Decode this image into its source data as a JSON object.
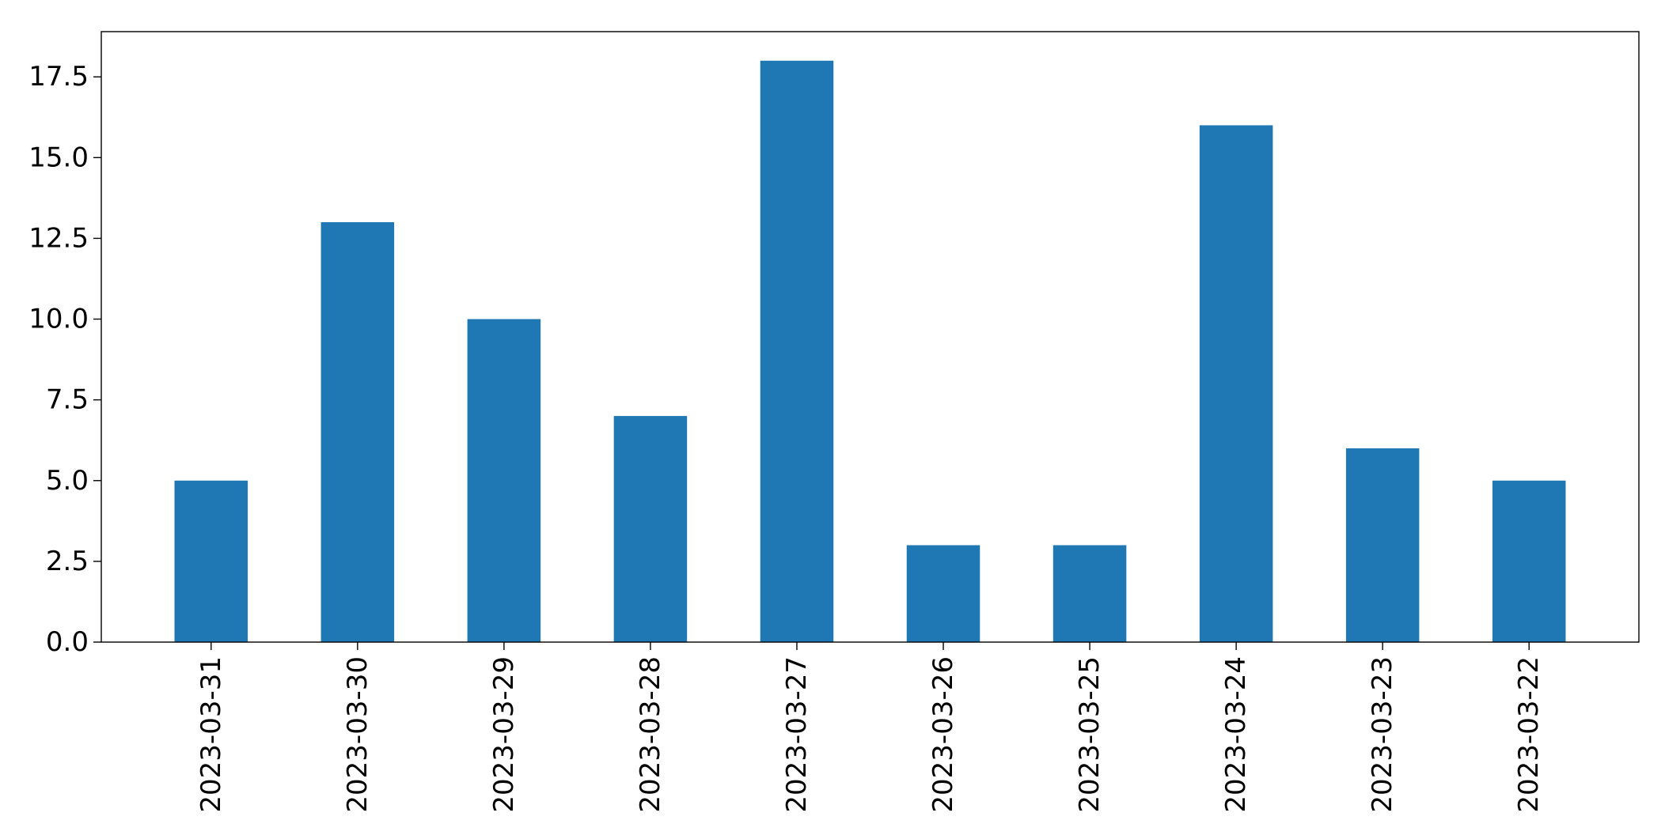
{
  "chart_data": {
    "type": "bar",
    "categories": [
      "2023-03-31",
      "2023-03-30",
      "2023-03-29",
      "2023-03-28",
      "2023-03-27",
      "2023-03-26",
      "2023-03-25",
      "2023-03-24",
      "2023-03-23",
      "2023-03-22"
    ],
    "values": [
      5,
      13,
      10,
      7,
      18,
      3,
      3,
      16,
      6,
      5
    ],
    "title": "",
    "xlabel": "",
    "ylabel": "",
    "ylim": [
      0,
      18.9
    ],
    "yticks": [
      "0.0",
      "2.5",
      "5.0",
      "7.5",
      "10.0",
      "12.5",
      "15.0",
      "17.5"
    ],
    "grid": false,
    "bar_color": "#1f77b4"
  }
}
